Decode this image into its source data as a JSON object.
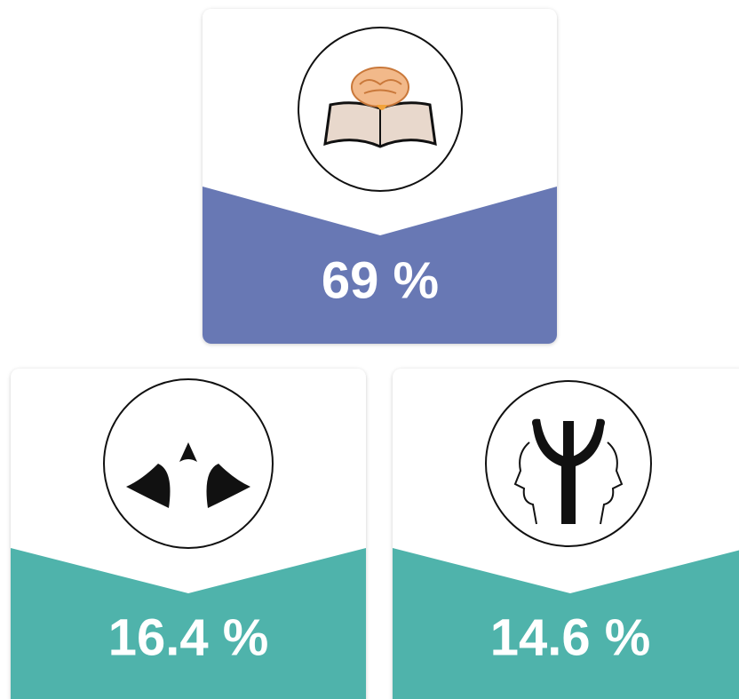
{
  "cards": [
    {
      "text": "69 %"
    },
    {
      "text": "16.4 %"
    },
    {
      "text": "14.6 %"
    }
  ]
}
